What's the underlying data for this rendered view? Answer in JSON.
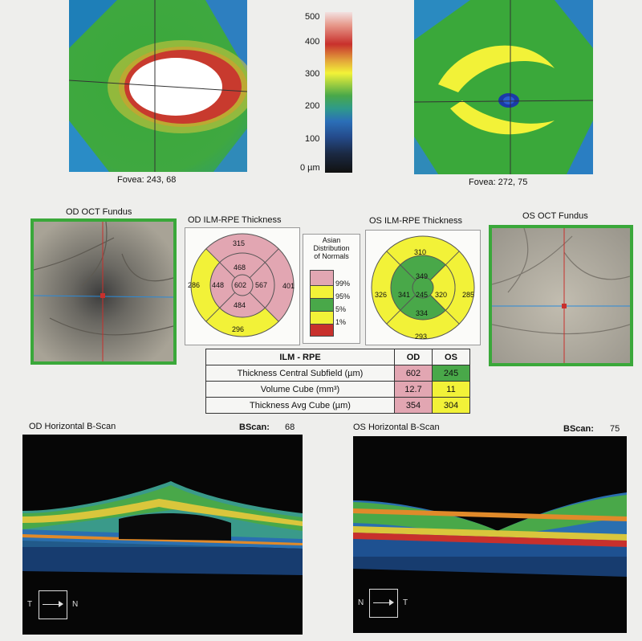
{
  "thickness_maps": {
    "od": {
      "fovea_label": "Fovea: 243, 68"
    },
    "os": {
      "fovea_label": "Fovea: 272, 75"
    },
    "color_scale": {
      "ticks": [
        "500",
        "400",
        "300",
        "200",
        "100",
        "0 µm"
      ]
    }
  },
  "od_fundus": {
    "title": "OD OCT Fundus"
  },
  "os_fundus": {
    "title": "OS OCT Fundus"
  },
  "od_etdrs": {
    "title": "OD ILM-RPE Thickness",
    "outer": {
      "superior": "315",
      "temporal": "286",
      "nasal": "401",
      "inferior": "296"
    },
    "inner": {
      "superior": "468",
      "temporal": "448",
      "nasal": "567",
      "inferior": "484"
    },
    "center": "602"
  },
  "os_etdrs": {
    "title": "OS ILM-RPE Thickness",
    "outer": {
      "superior": "310",
      "temporal": "326",
      "nasal": "285",
      "inferior": "293"
    },
    "inner": {
      "superior": "349",
      "temporal": "341",
      "nasal": "320",
      "inferior": "334"
    },
    "center": "245"
  },
  "legend": {
    "title_lines": [
      "Asian",
      "Distribution",
      "of Normals"
    ],
    "labels": [
      "99%",
      "95%",
      "5%",
      "1%"
    ],
    "colors": [
      "#e2a6b2",
      "#f2f238",
      "#49a849",
      "#f2f238",
      "#c8302c"
    ]
  },
  "summary_table": {
    "headers": [
      "ILM - RPE",
      "OD",
      "OS"
    ],
    "rows": [
      {
        "label": "Thickness Central Subfield (µm)",
        "od": "602",
        "os": "245"
      },
      {
        "label": "Volume Cube (mm³)",
        "od": "12.7",
        "os": "11"
      },
      {
        "label": "Thickness Avg Cube (µm)",
        "od": "354",
        "os": "304"
      }
    ]
  },
  "od_bscan": {
    "title": "OD Horizontal B-Scan",
    "bscan_label": "BScan:",
    "bscan_value": "68",
    "orient_left": "T",
    "orient_right": "N"
  },
  "os_bscan": {
    "title": "OS Horizontal B-Scan",
    "bscan_label": "BScan:",
    "bscan_value": "75",
    "orient_left": "N",
    "orient_right": "T"
  },
  "colors": {
    "normal_green": "#49a849",
    "high_pink": "#e2a6b2",
    "borderline_yellow": "#f2f238",
    "low_red": "#c8302c"
  }
}
